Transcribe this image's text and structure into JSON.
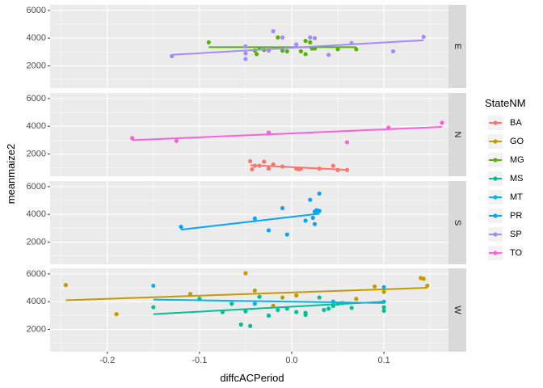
{
  "chart_data": {
    "type": "scatter",
    "xlabel": "diffcACPeriod",
    "ylabel": "meanmaize2",
    "xlim": [
      -0.262,
      0.17
    ],
    "ylim": [
      400,
      6400
    ],
    "x_ticks": [
      -0.2,
      -0.1,
      0.0,
      0.1
    ],
    "x_tick_labels": [
      "-0.2",
      "-0.1",
      "0.0",
      "0.1"
    ],
    "y_ticks": [
      2000,
      4000,
      6000
    ],
    "y_tick_labels": [
      "2000",
      "4000",
      "6000"
    ],
    "grid": true,
    "legend_position": "right",
    "legend_title": "StateNM",
    "facets": [
      "E",
      "N",
      "S",
      "W"
    ],
    "series": [
      {
        "name": "BA",
        "color": "#F8766D",
        "facet": "N",
        "points": [
          [
            -0.045,
            1480
          ],
          [
            -0.043,
            900
          ],
          [
            -0.04,
            1150
          ],
          [
            -0.035,
            1150
          ],
          [
            -0.03,
            1450
          ],
          [
            -0.025,
            950
          ],
          [
            -0.02,
            1250
          ],
          [
            -0.01,
            1100
          ],
          [
            0.005,
            950
          ],
          [
            0.008,
            900
          ],
          [
            0.01,
            950
          ],
          [
            0.03,
            950
          ],
          [
            0.045,
            1150
          ],
          [
            0.05,
            850
          ],
          [
            0.06,
            850
          ]
        ],
        "fit": [
          [
            -0.045,
            1200
          ],
          [
            0.06,
            860
          ]
        ]
      },
      {
        "name": "GO",
        "color": "#C49A00",
        "facet": "W",
        "points": [
          [
            -0.245,
            5200
          ],
          [
            -0.19,
            3100
          ],
          [
            -0.11,
            4550
          ],
          [
            -0.05,
            6050
          ],
          [
            -0.04,
            4800
          ],
          [
            -0.02,
            3700
          ],
          [
            -0.01,
            4300
          ],
          [
            0.005,
            4450
          ],
          [
            0.07,
            4200
          ],
          [
            0.09,
            5100
          ],
          [
            0.1,
            4700
          ],
          [
            0.14,
            5700
          ],
          [
            0.143,
            5650
          ],
          [
            0.147,
            5150
          ]
        ],
        "fit": [
          [
            -0.245,
            4100
          ],
          [
            0.147,
            5000
          ]
        ]
      },
      {
        "name": "MG",
        "color": "#53B400",
        "facet": "E",
        "points": [
          [
            -0.09,
            3700
          ],
          [
            -0.04,
            3100
          ],
          [
            -0.035,
            3250
          ],
          [
            -0.03,
            3150
          ],
          [
            -0.015,
            4050
          ],
          [
            -0.01,
            3100
          ],
          [
            -0.005,
            3050
          ],
          [
            0.01,
            3050
          ],
          [
            0.015,
            3800
          ],
          [
            0.02,
            3700
          ],
          [
            0.022,
            3250
          ],
          [
            0.025,
            3250
          ],
          [
            0.05,
            3200
          ],
          [
            0.07,
            3200
          ],
          [
            0.015,
            2850
          ],
          [
            -0.038,
            2850
          ]
        ],
        "fit": [
          [
            -0.09,
            3350
          ],
          [
            0.07,
            3350
          ]
        ]
      },
      {
        "name": "MS",
        "color": "#00C094",
        "facet": "W",
        "points": [
          [
            -0.15,
            3600
          ],
          [
            -0.1,
            4200
          ],
          [
            -0.075,
            3250
          ],
          [
            -0.065,
            3850
          ],
          [
            -0.055,
            2350
          ],
          [
            -0.045,
            2250
          ],
          [
            -0.05,
            3300
          ],
          [
            -0.035,
            4350
          ],
          [
            -0.025,
            3000
          ],
          [
            -0.015,
            3400
          ],
          [
            -0.005,
            3500
          ],
          [
            0.005,
            3250
          ],
          [
            0.015,
            3050
          ],
          [
            0.015,
            3200
          ],
          [
            0.03,
            4300
          ],
          [
            0.035,
            3400
          ],
          [
            0.04,
            3500
          ],
          [
            0.045,
            3700
          ],
          [
            0.05,
            3850
          ],
          [
            0.055,
            3900
          ],
          [
            0.065,
            3550
          ],
          [
            0.1,
            3600
          ],
          [
            0.1,
            3350
          ]
        ],
        "fit": [
          [
            -0.15,
            3100
          ],
          [
            0.1,
            4000
          ]
        ]
      },
      {
        "name": "MT",
        "color": "#00B6EB",
        "facet": "W",
        "points": [
          [
            -0.15,
            5150
          ],
          [
            -0.04,
            3850
          ],
          [
            0.045,
            4000
          ],
          [
            0.1,
            4000
          ],
          [
            0.1,
            5050
          ]
        ],
        "fit": [
          [
            -0.15,
            4150
          ],
          [
            0.1,
            3900
          ]
        ]
      },
      {
        "name": "PR",
        "color": "#06A4FF",
        "facet": "S",
        "points": [
          [
            -0.12,
            3100
          ],
          [
            -0.04,
            3700
          ],
          [
            -0.025,
            2850
          ],
          [
            -0.01,
            4450
          ],
          [
            -0.005,
            2550
          ],
          [
            0.015,
            3550
          ],
          [
            0.02,
            5050
          ],
          [
            0.023,
            3750
          ],
          [
            0.025,
            4200
          ],
          [
            0.025,
            3300
          ],
          [
            0.027,
            4300
          ],
          [
            0.028,
            4250
          ],
          [
            0.03,
            5500
          ],
          [
            0.03,
            4250
          ]
        ],
        "fit": [
          [
            -0.12,
            2900
          ],
          [
            0.03,
            4050
          ]
        ]
      },
      {
        "name": "SP",
        "color": "#A58AFF",
        "facet": "E",
        "points": [
          [
            -0.13,
            2700
          ],
          [
            -0.05,
            3400
          ],
          [
            -0.05,
            2900
          ],
          [
            -0.05,
            2500
          ],
          [
            -0.025,
            3100
          ],
          [
            -0.02,
            4500
          ],
          [
            -0.01,
            4050
          ],
          [
            0.005,
            3550
          ],
          [
            0.02,
            4050
          ],
          [
            0.025,
            4000
          ],
          [
            0.04,
            2800
          ],
          [
            0.065,
            3650
          ],
          [
            0.11,
            3050
          ],
          [
            0.143,
            4100
          ]
        ],
        "fit": [
          [
            -0.13,
            2800
          ],
          [
            0.143,
            3850
          ]
        ]
      },
      {
        "name": "TO",
        "color": "#FB61D7",
        "facet": "N",
        "points": [
          [
            -0.173,
            3150
          ],
          [
            -0.125,
            2950
          ],
          [
            -0.025,
            3550
          ],
          [
            0.06,
            2850
          ],
          [
            0.105,
            3900
          ],
          [
            0.163,
            4250
          ]
        ],
        "fit": [
          [
            -0.173,
            3000
          ],
          [
            0.163,
            3950
          ]
        ]
      }
    ]
  }
}
